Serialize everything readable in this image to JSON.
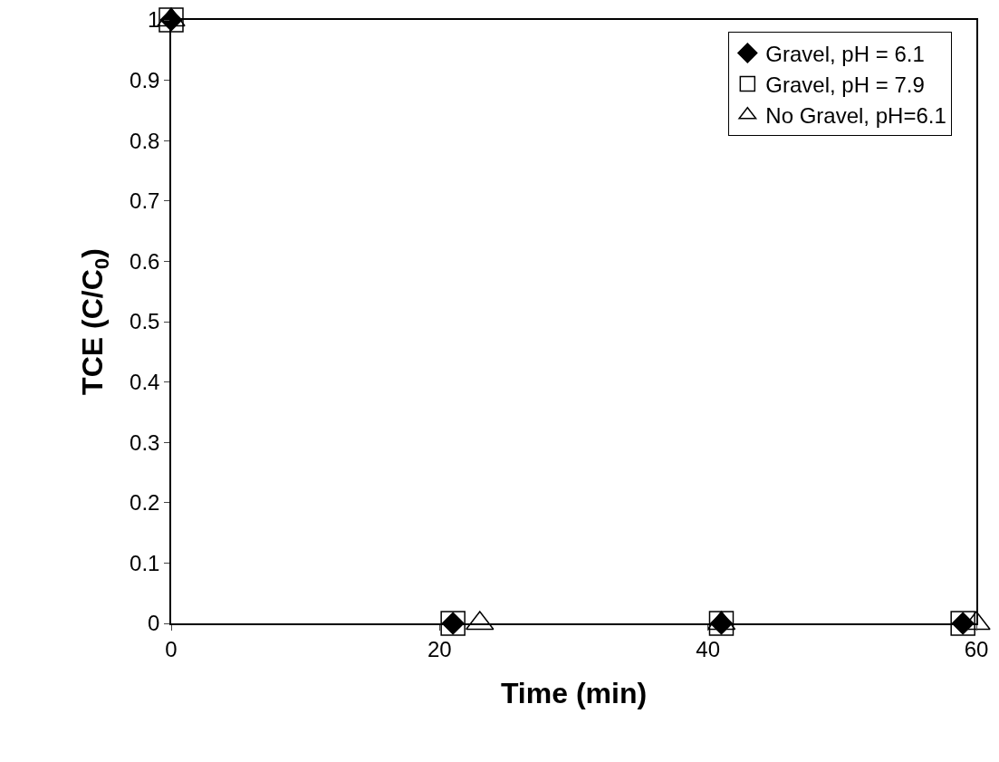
{
  "chart_data": {
    "type": "scatter",
    "xlabel": "Time (min)",
    "ylabel": "TCE (C/C$_{0}$)",
    "xlim": [
      0,
      60
    ],
    "xticks": [
      0,
      20,
      40,
      60
    ],
    "ylim": [
      0,
      1
    ],
    "yticks": [
      0,
      0.1,
      0.2,
      0.3,
      0.4,
      0.5,
      0.6,
      0.7,
      0.8,
      0.9,
      1
    ],
    "grid": false,
    "legend": "top right",
    "series": [
      {
        "name": "Gravel, pH = 6.1",
        "color": "#000000",
        "marker": "diamond",
        "x": [
          0,
          21,
          41,
          59
        ],
        "values": [
          1,
          0,
          0,
          0
        ]
      },
      {
        "name": "Gravel, pH = 7.9",
        "color": "#000000",
        "marker": "square",
        "x": [
          0,
          21,
          41,
          59
        ],
        "values": [
          1,
          0,
          0,
          0
        ]
      },
      {
        "name": "No Gravel, pH=6.1",
        "color": "#000000",
        "marker": "triangle",
        "x": [
          0,
          23,
          41,
          60
        ],
        "values": [
          1,
          0,
          0,
          0
        ]
      }
    ]
  }
}
